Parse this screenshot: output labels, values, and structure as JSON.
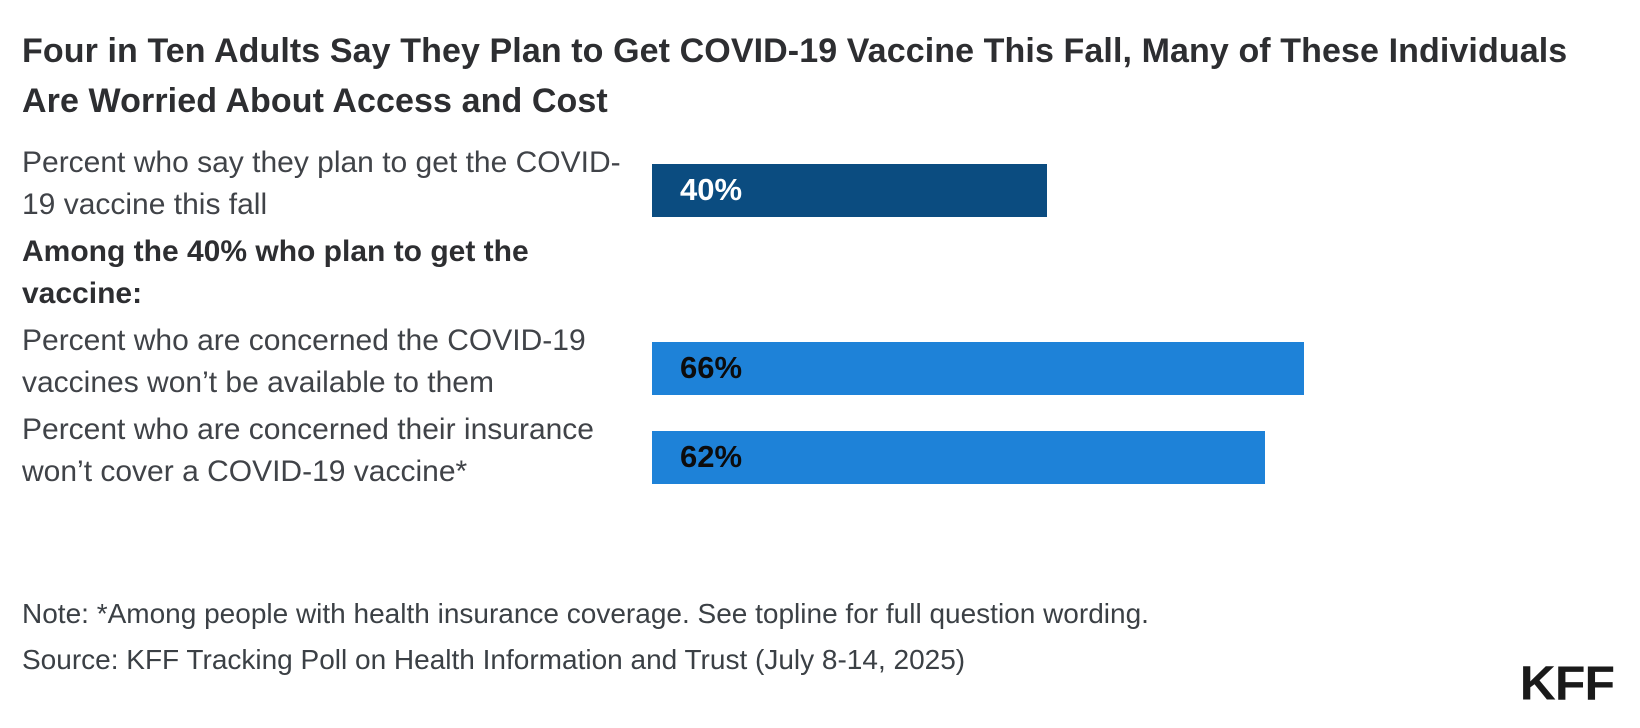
{
  "title": "Four in Ten Adults Say They Plan to Get COVID-19 Vaccine This Fall, Many of These Individuals Are Worried About Access and Cost",
  "colors": {
    "dark_blue": "#0b4c80",
    "light_blue": "#1e82d8",
    "title_text": "#2d2e31",
    "label_text": "#404348",
    "footer_text": "#3b4045"
  },
  "rows": [
    {
      "type": "bar",
      "label": "Percent who say they plan to get the COVID-19 vaccine this fall",
      "value": 40,
      "display": "40%",
      "bar_color": "#0b4c80",
      "value_text_color": "#ffffff"
    },
    {
      "type": "heading",
      "label": "Among the 40% who plan to get the vaccine:"
    },
    {
      "type": "bar",
      "label": "Percent who are concerned the COVID-19 vaccines won’t be available to them",
      "value": 66,
      "display": "66%",
      "bar_color": "#1e82d8",
      "value_text_color": "#0c0c0d"
    },
    {
      "type": "bar",
      "label": "Percent who are concerned their insurance won’t cover a COVID-19 vaccine*",
      "value": 62,
      "display": "62%",
      "bar_color": "#1e82d8",
      "value_text_color": "#0c0c0d"
    }
  ],
  "chart_data": {
    "type": "bar",
    "orientation": "horizontal",
    "title": "Four in Ten Adults Say They Plan to Get COVID-19 Vaccine This Fall, Many of These Individuals Are Worried About Access and Cost",
    "categories": [
      "Percent who say they plan to get the COVID-19 vaccine this fall",
      "Percent who are concerned the COVID-19 vaccines won’t be available to them",
      "Percent who are concerned their insurance won’t cover a COVID-19 vaccine*"
    ],
    "values": [
      40,
      66,
      62
    ],
    "data_labels": [
      "40%",
      "66%",
      "62%"
    ],
    "section_heading_between_rows": "Among the 40% who plan to get the vaccine:",
    "bar_colors": [
      "#0b4c80",
      "#1e82d8",
      "#1e82d8"
    ],
    "xlabel": "",
    "ylabel": "",
    "xlim": [
      0,
      100
    ],
    "grid": false,
    "legend": false
  },
  "footer": {
    "note": "Note: *Among people with health insurance coverage. See topline for full question wording.",
    "source": "Source: KFF Tracking Poll on Health Information and Trust (July 8-14, 2025)",
    "logo_text": "KFF"
  }
}
